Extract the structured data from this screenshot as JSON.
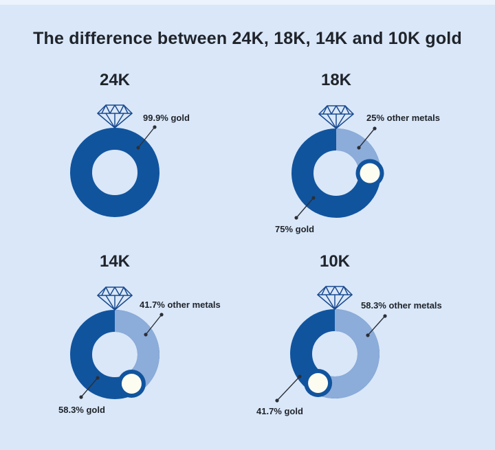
{
  "title": "The difference between 24K, 18K, 14K and 10K gold",
  "colors": {
    "background": "#d9e7f8",
    "gold": "#11549e",
    "other_metals": "#8cacda",
    "marker_fill": "#fdfcf1",
    "text": "#20242b",
    "pointer_line": "#2b2f36",
    "diamond_outline": "#1a4a8f"
  },
  "chart_data": [
    {
      "type": "pie",
      "variant": "donut",
      "title": "24K",
      "unit": "%",
      "slices": [
        {
          "name": "gold",
          "percent": 99.9,
          "label": "99.9% gold"
        }
      ]
    },
    {
      "type": "pie",
      "variant": "donut",
      "title": "18K",
      "unit": "%",
      "slices": [
        {
          "name": "gold",
          "percent": 75,
          "label": "75% gold"
        },
        {
          "name": "other metals",
          "percent": 25,
          "label": "25% other metals"
        }
      ]
    },
    {
      "type": "pie",
      "variant": "donut",
      "title": "14K",
      "unit": "%",
      "slices": [
        {
          "name": "gold",
          "percent": 58.3,
          "label": "58.3% gold"
        },
        {
          "name": "other metals",
          "percent": 41.7,
          "label": "41.7% other metals"
        }
      ]
    },
    {
      "type": "pie",
      "variant": "donut",
      "title": "10K",
      "unit": "%",
      "slices": [
        {
          "name": "gold",
          "percent": 41.7,
          "label": "41.7% gold"
        },
        {
          "name": "other metals",
          "percent": 58.3,
          "label": "58.3% other metals"
        }
      ]
    }
  ]
}
